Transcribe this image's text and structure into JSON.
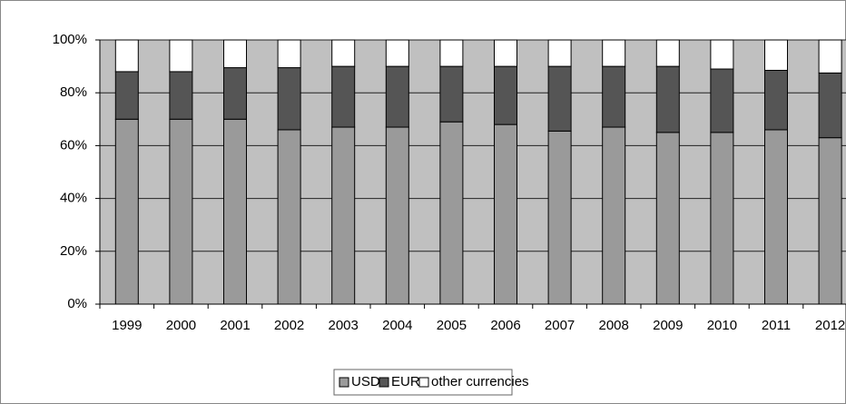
{
  "chart_data": {
    "type": "stacked_bar",
    "categories": [
      "1999",
      "2000",
      "2001",
      "2002",
      "2003",
      "2004",
      "2005",
      "2006",
      "2007",
      "2008",
      "2009",
      "2010",
      "2011",
      "2012"
    ],
    "series": [
      {
        "name": "USD",
        "color": "#9a9a9a",
        "values": [
          70,
          70,
          70,
          66,
          67,
          67,
          69,
          68,
          65.5,
          67,
          65,
          65,
          66,
          63
        ]
      },
      {
        "name": "EUR",
        "color": "#555555",
        "values": [
          18,
          18,
          19.5,
          23.5,
          23,
          23,
          21,
          22,
          24.5,
          23,
          25,
          24,
          22.5,
          24.5
        ]
      },
      {
        "name": "other currencies",
        "color": "#ffffff",
        "values": [
          12,
          12,
          10.5,
          10.5,
          10,
          10,
          10,
          10,
          10,
          10,
          10,
          11,
          11.5,
          12.5
        ]
      }
    ],
    "ylim": [
      0,
      100
    ],
    "yticks": [
      {
        "value": 0,
        "label": "0%"
      },
      {
        "value": 20,
        "label": "20%"
      },
      {
        "value": 40,
        "label": "40%"
      },
      {
        "value": 60,
        "label": "60%"
      },
      {
        "value": 80,
        "label": "80%"
      },
      {
        "value": 100,
        "label": "100%"
      }
    ],
    "grid": true,
    "plot_background": "#c0c0c0",
    "legend": "bottom"
  }
}
